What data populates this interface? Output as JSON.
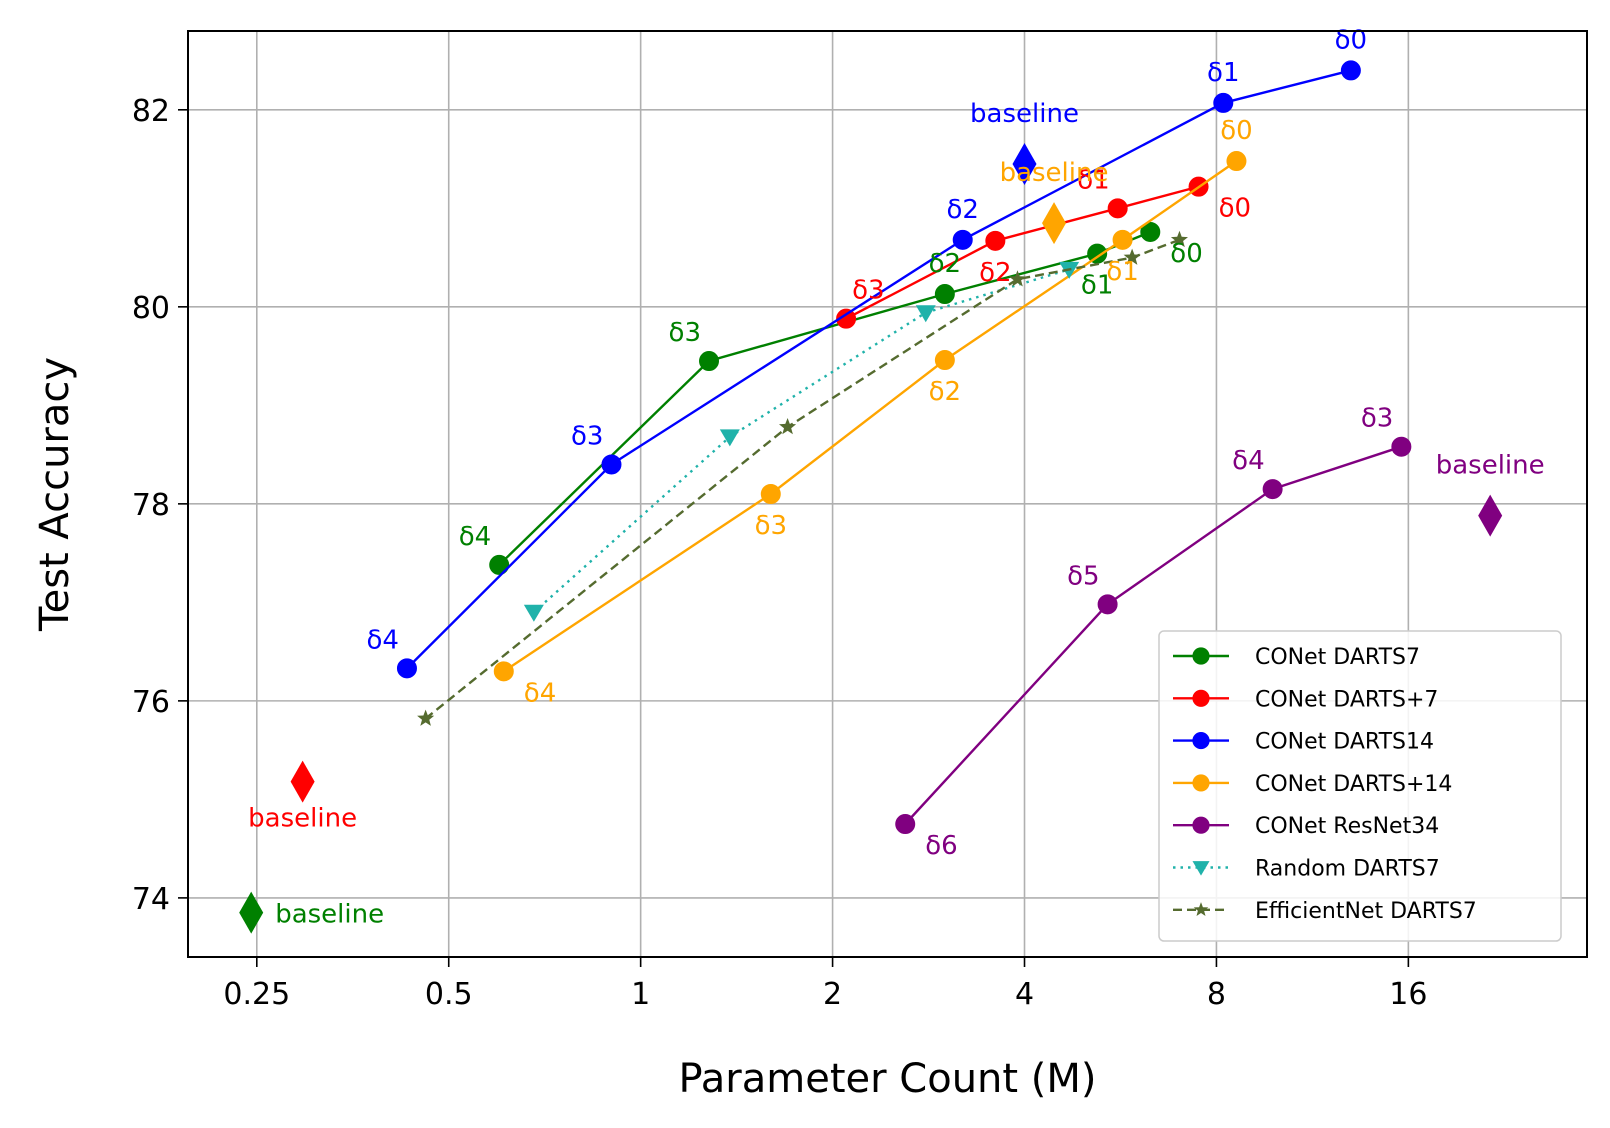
{
  "chart_data": {
    "type": "line",
    "title": "",
    "xlabel": "Parameter Count (M)",
    "ylabel": "Test Accuracy",
    "xscale": "log2",
    "xlim": [
      0.195,
      30.5
    ],
    "ylim": [
      73.4,
      82.8
    ],
    "xticks": [
      0.25,
      0.5,
      1,
      2,
      4,
      8,
      16
    ],
    "xtick_labels": [
      "0.25",
      "0.5",
      "1",
      "2",
      "4",
      "8",
      "16"
    ],
    "yticks": [
      74,
      76,
      78,
      80,
      82
    ],
    "ytick_labels": [
      "74",
      "76",
      "78",
      "80",
      "82"
    ],
    "grid": true,
    "legend_position": "lower-right",
    "series": [
      {
        "name": "CONet DARTS7",
        "color": "#008000",
        "marker": "circle",
        "linestyle": "solid",
        "points": [
          {
            "x": 0.6,
            "y": 77.38,
            "label": "δ4",
            "label_pos": "above-left"
          },
          {
            "x": 1.28,
            "y": 79.45,
            "label": "δ3",
            "label_pos": "above-left"
          },
          {
            "x": 3.0,
            "y": 80.13,
            "label": "δ2",
            "label_pos": "above"
          },
          {
            "x": 5.2,
            "y": 80.54,
            "label": "δ1",
            "label_pos": "below"
          },
          {
            "x": 6.3,
            "y": 80.76,
            "label": "δ0",
            "label_pos": "below-right"
          }
        ],
        "baseline": {
          "x": 0.245,
          "y": 73.85,
          "label": "baseline",
          "label_pos": "right"
        }
      },
      {
        "name": "CONet DARTS+7",
        "color": "#ff0000",
        "marker": "circle",
        "linestyle": "solid",
        "points": [
          {
            "x": 2.1,
            "y": 79.88,
            "label": "δ3",
            "label_pos": "above-right"
          },
          {
            "x": 3.6,
            "y": 80.67,
            "label": "δ2",
            "label_pos": "below"
          },
          {
            "x": 5.6,
            "y": 81.0,
            "label": "δ1",
            "label_pos": "above-left"
          },
          {
            "x": 7.5,
            "y": 81.22,
            "label": "δ0",
            "label_pos": "below-right"
          }
        ],
        "baseline": {
          "x": 0.295,
          "y": 75.18,
          "label": "baseline",
          "label_pos": "below"
        }
      },
      {
        "name": "CONet DARTS14",
        "color": "#0000ff",
        "marker": "circle",
        "linestyle": "solid",
        "points": [
          {
            "x": 0.43,
            "y": 76.33,
            "label": "δ4",
            "label_pos": "above-left"
          },
          {
            "x": 0.9,
            "y": 78.4,
            "label": "δ3",
            "label_pos": "above-left"
          },
          {
            "x": 3.2,
            "y": 80.68,
            "label": "δ2",
            "label_pos": "above"
          },
          {
            "x": 8.2,
            "y": 82.07,
            "label": "δ1",
            "label_pos": "above"
          },
          {
            "x": 13.0,
            "y": 82.4,
            "label": "δ0",
            "label_pos": "above"
          }
        ],
        "baseline": {
          "x": 4.0,
          "y": 81.45,
          "label": "baseline",
          "label_pos": "above"
        }
      },
      {
        "name": "CONet DARTS+14",
        "color": "#ffa500",
        "marker": "circle",
        "linestyle": "solid",
        "points": [
          {
            "x": 0.61,
            "y": 76.3,
            "label": "δ4",
            "label_pos": "below-right"
          },
          {
            "x": 1.6,
            "y": 78.1,
            "label": "δ3",
            "label_pos": "below"
          },
          {
            "x": 3.0,
            "y": 79.46,
            "label": "δ2",
            "label_pos": "below"
          },
          {
            "x": 5.7,
            "y": 80.68,
            "label": "δ1",
            "label_pos": "below"
          },
          {
            "x": 8.6,
            "y": 81.48,
            "label": "δ0",
            "label_pos": "above"
          }
        ],
        "baseline": {
          "x": 4.45,
          "y": 80.85,
          "label": "baseline",
          "label_pos": "above"
        }
      },
      {
        "name": "CONet ResNet34",
        "color": "#800080",
        "marker": "circle",
        "linestyle": "solid",
        "points": [
          {
            "x": 2.6,
            "y": 74.75,
            "label": "δ6",
            "label_pos": "below-right"
          },
          {
            "x": 5.4,
            "y": 76.98,
            "label": "δ5",
            "label_pos": "above-left"
          },
          {
            "x": 9.8,
            "y": 78.15,
            "label": "δ4",
            "label_pos": "above-left"
          },
          {
            "x": 15.6,
            "y": 78.58,
            "label": "δ3",
            "label_pos": "above-left"
          }
        ],
        "baseline": {
          "x": 21.5,
          "y": 77.88,
          "label": "baseline",
          "label_pos": "above"
        }
      },
      {
        "name": "Random DARTS7",
        "color": "#20b2aa",
        "marker": "triangle-down",
        "linestyle": "dotted",
        "points": [
          {
            "x": 0.68,
            "y": 76.9
          },
          {
            "x": 1.38,
            "y": 78.68
          },
          {
            "x": 2.8,
            "y": 79.94
          },
          {
            "x": 4.7,
            "y": 80.38
          }
        ]
      },
      {
        "name": "EfficientNet DARTS7",
        "color": "#556b2f",
        "marker": "star",
        "linestyle": "dashed",
        "points": [
          {
            "x": 0.46,
            "y": 75.82
          },
          {
            "x": 1.7,
            "y": 78.78
          },
          {
            "x": 3.9,
            "y": 80.28
          },
          {
            "x": 5.9,
            "y": 80.5
          },
          {
            "x": 7.0,
            "y": 80.68
          }
        ]
      }
    ]
  }
}
